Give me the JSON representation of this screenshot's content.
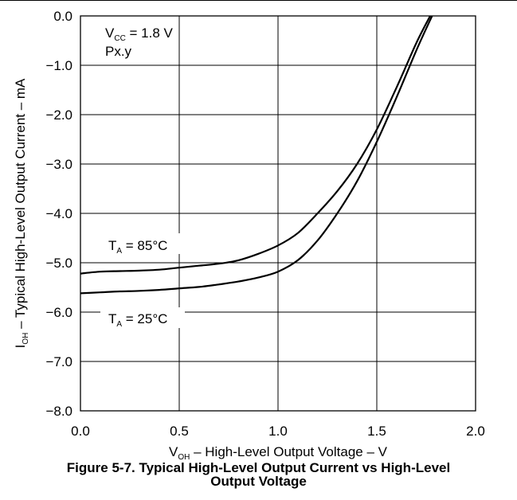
{
  "chart_data": {
    "type": "line",
    "title": "",
    "annotations": {
      "vcc_label": "V",
      "vcc_sub": "CC",
      "vcc_value": " = 1.8 V",
      "device": "Px.y"
    },
    "xlabel": {
      "main": "V",
      "sub": "OH",
      "rest": " – High-Level Output Voltage – V"
    },
    "ylabel": {
      "main": "I",
      "sub": "OH",
      "rest": " – Typical High-Level Output Current – mA"
    },
    "xlim": [
      0.0,
      2.0
    ],
    "ylim": [
      -8.0,
      0.0
    ],
    "x_ticks": [
      "0.0",
      "0.5",
      "1.0",
      "1.5",
      "2.0"
    ],
    "y_ticks": [
      "0.0",
      "−1.0",
      "−2.0",
      "−3.0",
      "−4.0",
      "−5.0",
      "−6.0",
      "−7.0",
      "−8.0"
    ],
    "grid": true,
    "series": [
      {
        "name": "T",
        "name_sub": "A",
        "name_rest": " = 85°C",
        "color": "#000000",
        "x": [
          0.0,
          0.1,
          0.2,
          0.3,
          0.4,
          0.5,
          0.6,
          0.7,
          0.8,
          0.9,
          1.0,
          1.1,
          1.2,
          1.3,
          1.4,
          1.5,
          1.6,
          1.7,
          1.77
        ],
        "y": [
          -5.22,
          -5.18,
          -5.17,
          -5.16,
          -5.14,
          -5.1,
          -5.06,
          -5.02,
          -4.95,
          -4.82,
          -4.65,
          -4.4,
          -4.0,
          -3.55,
          -3.0,
          -2.3,
          -1.45,
          -0.55,
          0.0
        ]
      },
      {
        "name": "T",
        "name_sub": "A",
        "name_rest": " = 25°C",
        "color": "#000000",
        "x": [
          0.0,
          0.1,
          0.2,
          0.3,
          0.4,
          0.5,
          0.6,
          0.7,
          0.8,
          0.9,
          1.0,
          1.1,
          1.2,
          1.3,
          1.4,
          1.5,
          1.6,
          1.7,
          1.78
        ],
        "y": [
          -5.62,
          -5.6,
          -5.58,
          -5.57,
          -5.55,
          -5.52,
          -5.49,
          -5.44,
          -5.38,
          -5.3,
          -5.18,
          -4.95,
          -4.55,
          -4.0,
          -3.35,
          -2.55,
          -1.65,
          -0.7,
          0.0
        ]
      }
    ]
  },
  "caption": {
    "line1": "Figure 5-7.  Typical High-Level Output Current vs High-Level",
    "line2": "Output Voltage"
  }
}
